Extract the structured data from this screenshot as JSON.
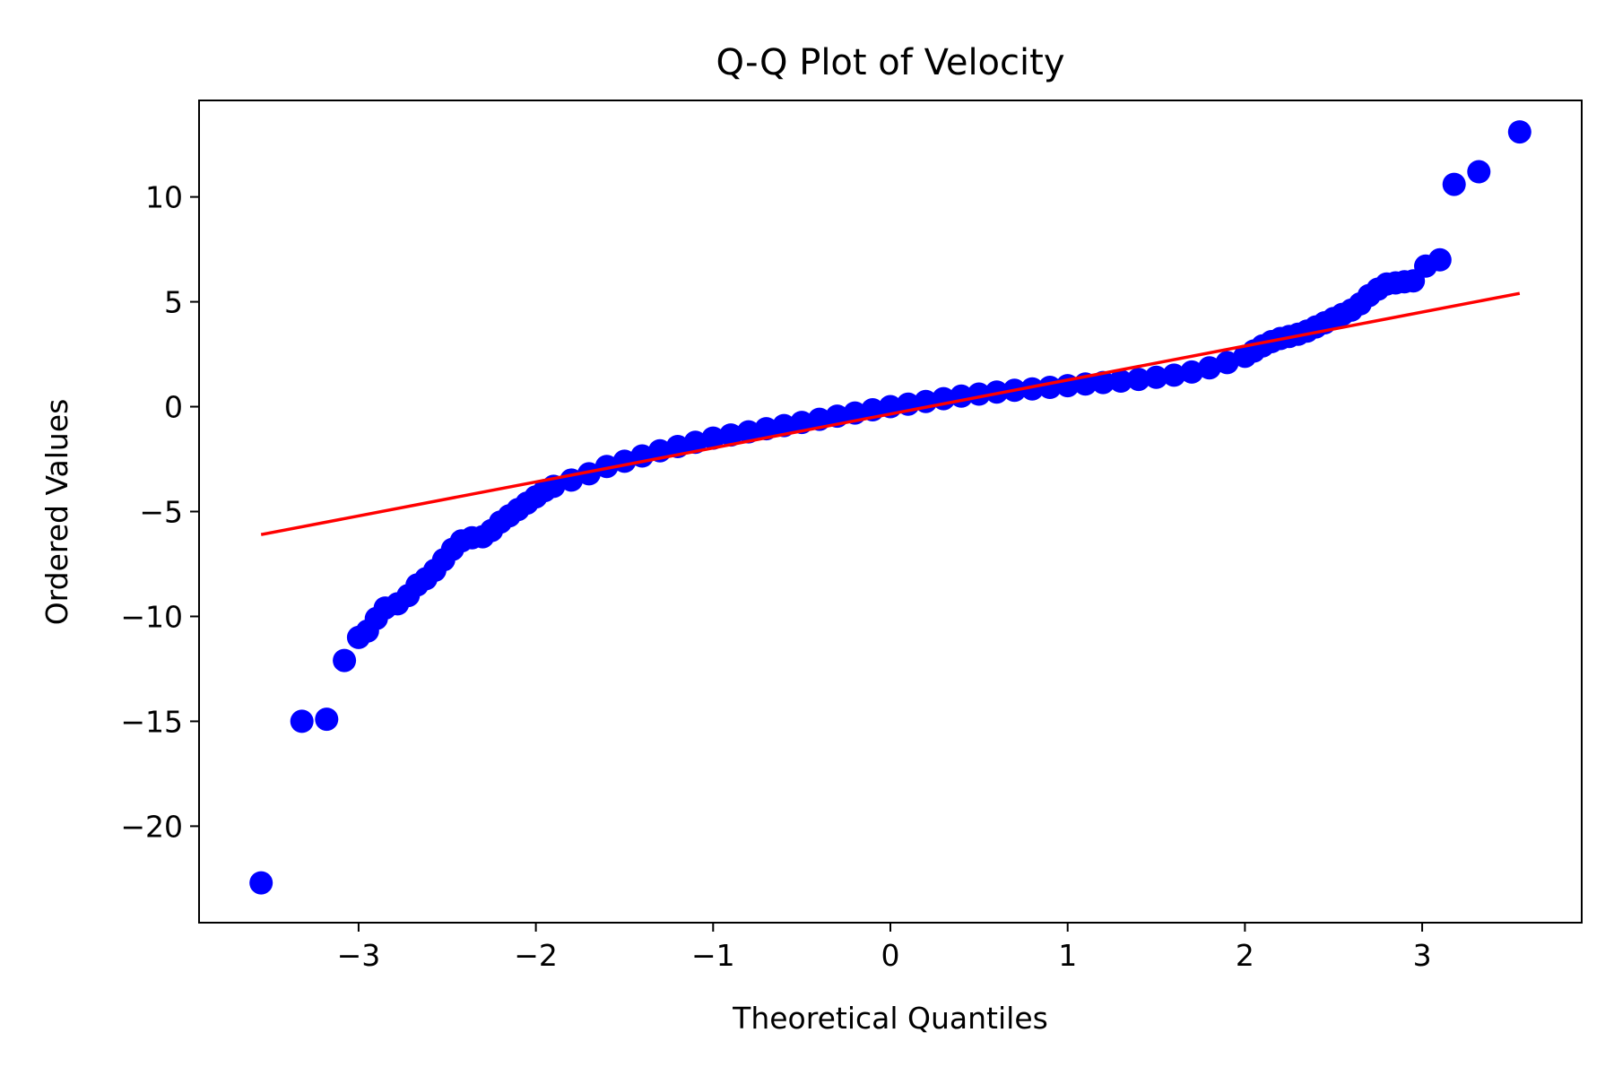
{
  "chart_data": {
    "type": "scatter",
    "title": "Q-Q Plot of Velocity",
    "xlabel": "Theoretical Quantiles",
    "ylabel": "Ordered Values",
    "xlim": [
      -3.9,
      3.9
    ],
    "ylim": [
      -24.6,
      14.6
    ],
    "x_ticks": [
      -3,
      -2,
      -1,
      0,
      1,
      2,
      3
    ],
    "x_tick_labels": [
      "−3",
      "−2",
      "−1",
      "0",
      "1",
      "2",
      "3"
    ],
    "y_ticks": [
      -20,
      -15,
      -10,
      -5,
      0,
      5,
      10
    ],
    "y_tick_labels": [
      "−20",
      "−15",
      "−10",
      "−5",
      "0",
      "5",
      "10"
    ],
    "grid": false,
    "colors": {
      "points": "#0000ff",
      "fit_line": "#ff0000",
      "axes": "#000000"
    },
    "series": [
      {
        "kind": "points",
        "points": [
          [
            -3.55,
            -22.7
          ],
          [
            -3.32,
            -15.0
          ],
          [
            -3.18,
            -14.9
          ],
          [
            -3.08,
            -12.1
          ],
          [
            -3.0,
            -11.0
          ],
          [
            -2.95,
            -10.7
          ],
          [
            -2.9,
            -10.1
          ],
          [
            -2.85,
            -9.6
          ],
          [
            -2.78,
            -9.4
          ],
          [
            -2.72,
            -9.0
          ],
          [
            -2.67,
            -8.5
          ],
          [
            -2.62,
            -8.2
          ],
          [
            -2.57,
            -7.8
          ],
          [
            -2.52,
            -7.3
          ],
          [
            -2.47,
            -6.8
          ],
          [
            -2.42,
            -6.4
          ],
          [
            -2.36,
            -6.25
          ],
          [
            -2.3,
            -6.2
          ],
          [
            -2.25,
            -5.9
          ],
          [
            -2.2,
            -5.5
          ],
          [
            -2.15,
            -5.2
          ],
          [
            -2.1,
            -4.9
          ],
          [
            -2.05,
            -4.6
          ],
          [
            -2.0,
            -4.3
          ],
          [
            -1.95,
            -4.0
          ],
          [
            -1.9,
            -3.8
          ],
          [
            -1.8,
            -3.5
          ],
          [
            -1.7,
            -3.2
          ],
          [
            -1.6,
            -2.85
          ],
          [
            -1.5,
            -2.6
          ],
          [
            -1.4,
            -2.35
          ],
          [
            -1.3,
            -2.1
          ],
          [
            -1.2,
            -1.9
          ],
          [
            -1.1,
            -1.7
          ],
          [
            -1.0,
            -1.5
          ],
          [
            -0.9,
            -1.35
          ],
          [
            -0.8,
            -1.2
          ],
          [
            -0.7,
            -1.05
          ],
          [
            -0.6,
            -0.9
          ],
          [
            -0.5,
            -0.75
          ],
          [
            -0.4,
            -0.6
          ],
          [
            -0.3,
            -0.45
          ],
          [
            -0.2,
            -0.3
          ],
          [
            -0.1,
            -0.15
          ],
          [
            0.0,
            0.0
          ],
          [
            0.1,
            0.12
          ],
          [
            0.2,
            0.25
          ],
          [
            0.3,
            0.38
          ],
          [
            0.4,
            0.5
          ],
          [
            0.5,
            0.6
          ],
          [
            0.6,
            0.7
          ],
          [
            0.7,
            0.78
          ],
          [
            0.8,
            0.85
          ],
          [
            0.9,
            0.92
          ],
          [
            1.0,
            1.0
          ],
          [
            1.1,
            1.08
          ],
          [
            1.2,
            1.15
          ],
          [
            1.3,
            1.22
          ],
          [
            1.4,
            1.3
          ],
          [
            1.5,
            1.4
          ],
          [
            1.6,
            1.5
          ],
          [
            1.7,
            1.65
          ],
          [
            1.8,
            1.85
          ],
          [
            1.9,
            2.1
          ],
          [
            2.0,
            2.4
          ],
          [
            2.05,
            2.65
          ],
          [
            2.1,
            2.9
          ],
          [
            2.15,
            3.1
          ],
          [
            2.2,
            3.25
          ],
          [
            2.25,
            3.35
          ],
          [
            2.3,
            3.45
          ],
          [
            2.35,
            3.6
          ],
          [
            2.4,
            3.8
          ],
          [
            2.45,
            4.0
          ],
          [
            2.5,
            4.2
          ],
          [
            2.55,
            4.4
          ],
          [
            2.6,
            4.6
          ],
          [
            2.65,
            4.9
          ],
          [
            2.7,
            5.3
          ],
          [
            2.75,
            5.6
          ],
          [
            2.8,
            5.85
          ],
          [
            2.85,
            5.9
          ],
          [
            2.9,
            5.95
          ],
          [
            2.95,
            6.0
          ],
          [
            3.02,
            6.7
          ],
          [
            3.1,
            7.0
          ],
          [
            3.18,
            10.6
          ],
          [
            3.32,
            11.2
          ],
          [
            3.55,
            13.1
          ]
        ]
      },
      {
        "kind": "line",
        "points": [
          [
            -3.55,
            -6.1
          ],
          [
            3.55,
            5.4
          ]
        ]
      }
    ]
  }
}
